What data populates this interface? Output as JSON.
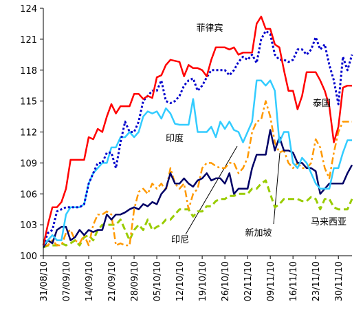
{
  "chart_data": {
    "type": "line",
    "categories": [
      "31/08/10",
      null,
      null,
      null,
      null,
      "07/09/10",
      null,
      null,
      null,
      null,
      "14/09/10",
      null,
      null,
      null,
      null,
      "21/09/10",
      null,
      null,
      null,
      null,
      "28/09/10",
      null,
      null,
      null,
      null,
      "05/10/10",
      null,
      null,
      null,
      null,
      "12/10/10",
      null,
      null,
      null,
      null,
      "19/10/10",
      null,
      null,
      null,
      null,
      "26/10/10",
      null,
      null,
      null,
      null,
      "02/11/10",
      null,
      null,
      null,
      null,
      "09/11/10",
      null,
      null,
      null,
      null,
      "16/11/10",
      null,
      null,
      null,
      null,
      "23/11/10",
      null,
      null,
      null,
      null,
      "30/11/10",
      null,
      null,
      null
    ],
    "ylim": [
      100,
      124
    ],
    "yticks": [
      100,
      103,
      106,
      109,
      112,
      115,
      118,
      121,
      124
    ],
    "grid": false,
    "series": [
      {
        "name": "菲律宾",
        "color": "#ff0000",
        "dash": "solid",
        "values": [
          101,
          103,
          104.7,
          104.7,
          105.2,
          106.5,
          109.3,
          109.3,
          109.3,
          109.3,
          111.5,
          111.3,
          112.3,
          112,
          113.5,
          114.7,
          113.8,
          114.5,
          114.5,
          114.5,
          115.7,
          115.7,
          115.2,
          115.5,
          115.3,
          117.3,
          117.5,
          118.5,
          119,
          118.9,
          118.8,
          117.4,
          118.5,
          118.2,
          118.2,
          118,
          117.4,
          119,
          120.2,
          120.2,
          120.2,
          120,
          120.2,
          119.5,
          119.7,
          119.7,
          119.7,
          122.5,
          123.2,
          122,
          122,
          120.5,
          120.2,
          118,
          116,
          116,
          114.2,
          115.5,
          117.8,
          117.8,
          117.8,
          117,
          116,
          114.5,
          111,
          112.5,
          116.3,
          116.5,
          116.5
        ]
      },
      {
        "name": "泰国",
        "color": "#0000cc",
        "dash": "dotted",
        "values": [
          101,
          102.2,
          102.5,
          104.3,
          104.5,
          104.7,
          104.7,
          104.7,
          104.7,
          105,
          107,
          108,
          109,
          109,
          110,
          110,
          108.5,
          111,
          113,
          112,
          112,
          113,
          115,
          115.5,
          116,
          116,
          117,
          115,
          114.8,
          115,
          115.5,
          116.5,
          117,
          117.2,
          116,
          116.5,
          117.3,
          118,
          118,
          118,
          118,
          117.5,
          118,
          118.8,
          119.3,
          119,
          119.5,
          118.7,
          121,
          121.8,
          121.5,
          119.5,
          119,
          119,
          118.8,
          119,
          120,
          120,
          119.5,
          120,
          121.2,
          120,
          120.5,
          118.5,
          117,
          114.7,
          119.3,
          118,
          119.5
        ]
      },
      {
        "name": "印度",
        "color": "#33ccff",
        "dash": "solid",
        "values": [
          101,
          101.5,
          102,
          101.5,
          101.5,
          104,
          104.7,
          104.7,
          104.7,
          105,
          107,
          108,
          108.5,
          109,
          109,
          110.5,
          110.5,
          111.5,
          111.5,
          112,
          111.5,
          112,
          113.5,
          114,
          113.8,
          114,
          113.3,
          114.3,
          113.8,
          112.8,
          112.7,
          112.7,
          112.7,
          115.2,
          112,
          112,
          112,
          112.5,
          111.5,
          113,
          112.3,
          113,
          112.2,
          112,
          111,
          112,
          113,
          117,
          117,
          116.5,
          117,
          116,
          111,
          112,
          112,
          109,
          108.5,
          109.5,
          109,
          108,
          107,
          106.5,
          106.5,
          106.5,
          108.5,
          108.5,
          110,
          111.2,
          111.2
        ]
      },
      {
        "name": "印尼",
        "color": "#ff9900",
        "dash": "dashdot",
        "values": [
          101,
          101,
          101.5,
          101,
          101,
          102.2,
          102.5,
          101.5,
          101.2,
          102,
          101,
          103,
          104,
          104,
          104.3,
          104,
          101,
          101.2,
          101,
          101,
          104.5,
          106.2,
          106.5,
          106,
          107,
          106.5,
          107,
          106.3,
          108.5,
          107,
          106.5,
          107,
          104.5,
          106,
          106.5,
          108.5,
          109,
          109,
          108.7,
          108.5,
          108.5,
          109,
          109,
          108,
          108.5,
          109.5,
          112,
          113,
          113.2,
          115,
          113.5,
          111,
          110,
          110.2,
          109,
          108.5,
          109,
          108.5,
          108.5,
          109,
          111.3,
          110.5,
          108.5,
          107.5,
          110,
          112,
          113,
          113,
          113
        ]
      },
      {
        "name": "新加坡",
        "color": "#000066",
        "dash": "solid",
        "values": [
          100.8,
          101.5,
          101.2,
          102.5,
          102.8,
          102.8,
          101.5,
          101.8,
          102.5,
          102,
          102.5,
          102.3,
          102.5,
          102.5,
          104,
          103.5,
          104,
          104,
          104.2,
          104.5,
          104.7,
          104.5,
          105,
          104.8,
          105.2,
          105,
          106,
          106.5,
          108,
          107,
          107,
          107.5,
          107,
          106.7,
          107.3,
          107.5,
          108,
          107.3,
          107.5,
          107.5,
          107,
          108,
          106,
          106.5,
          106.5,
          106.5,
          108.5,
          109.8,
          109.8,
          109.8,
          112.2,
          110.2,
          111.5,
          110.2,
          110.2,
          110,
          109,
          109,
          108.5,
          108.5,
          108.2,
          106,
          106.5,
          107,
          107,
          107,
          107,
          108,
          108.8
        ]
      },
      {
        "name": "马来西亚",
        "color": "#99cc00",
        "dash": "dashed",
        "values": [
          100.8,
          101,
          101,
          101,
          101.2,
          101,
          101.2,
          101.5,
          101,
          101.8,
          102,
          101.5,
          102.5,
          103,
          103,
          103,
          103,
          103.5,
          102.5,
          101.5,
          102.5,
          103,
          102.5,
          103.5,
          102.5,
          102.8,
          103,
          103.5,
          103.5,
          104,
          104.5,
          104.5,
          104.5,
          103.8,
          104.3,
          104.3,
          104.8,
          104.8,
          105.3,
          105.5,
          105.5,
          105.8,
          105.8,
          106,
          106,
          106,
          106.5,
          106.5,
          107,
          107.3,
          106,
          104.7,
          105,
          105.5,
          105.5,
          105.5,
          105.5,
          105.3,
          105.3,
          105.7,
          105.5,
          104.5,
          105.5,
          105.5,
          104.7,
          104.5,
          104.5,
          104.5,
          105.5
        ]
      }
    ]
  }
}
